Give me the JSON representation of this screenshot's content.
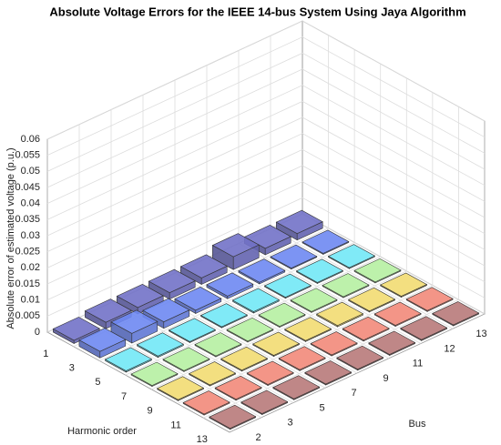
{
  "chart_data": {
    "type": "bar3d",
    "title": "Absolute Voltage Errors for the IEEE 14-bus System Using Jaya Algorithm",
    "xlabel": "Harmonic order",
    "ylabel": "Bus",
    "zlabel": "Absolute error of estimated voltage (p.u.)",
    "x_categories": [
      1,
      3,
      5,
      7,
      9,
      11,
      13
    ],
    "y_categories": [
      2,
      3,
      5,
      7,
      9,
      11,
      12,
      13
    ],
    "colors": [
      "#7272c8",
      "#6e88f2",
      "#72e8f6",
      "#b6f0a2",
      "#f2dc72",
      "#f28a7a",
      "#b87a7a"
    ],
    "values": [
      [
        0.001,
        0.002,
        0.002,
        0.002,
        0.002,
        0.004,
        0.002,
        0.002
      ],
      [
        0.002,
        0.003,
        0.002,
        0.001,
        0.0008,
        0.0005,
        0.0003,
        0.0003
      ],
      [
        0.0004,
        0.0004,
        0.0003,
        0.0003,
        0.0004,
        0.0003,
        0.0003,
        0.0003
      ],
      [
        0.0003,
        0.0003,
        0.0003,
        0.0003,
        0.0003,
        0.0003,
        0.0003,
        0.0003
      ],
      [
        0.0003,
        0.0003,
        0.0003,
        0.0003,
        0.0003,
        0.0004,
        0.0003,
        0.0003
      ],
      [
        0.0003,
        0.0003,
        0.0003,
        0.0003,
        0.0003,
        0.0003,
        0.0003,
        0.0003
      ],
      [
        0.0003,
        0.0003,
        0.0003,
        0.0003,
        0.0003,
        0.0003,
        0.0003,
        0.0003
      ]
    ],
    "zlim": [
      0,
      0.06
    ],
    "zticks": [
      0,
      0.005,
      0.01,
      0.015,
      0.02,
      0.025,
      0.03,
      0.035,
      0.04,
      0.045,
      0.05,
      0.055,
      0.06
    ],
    "grid": true
  }
}
